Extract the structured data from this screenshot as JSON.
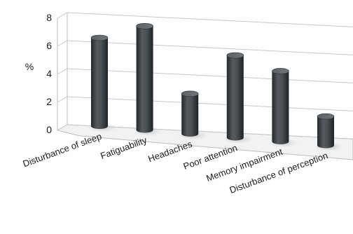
{
  "chart_data": {
    "type": "bar",
    "style": "3d-cylinder",
    "categories": [
      "Disturbance of sleep",
      "Fatiguability",
      "Headaches",
      "Poor attention",
      "Memory impairment",
      "Disturbance of perception"
    ],
    "values": [
      7.0,
      8.0,
      3.0,
      6.0,
      5.0,
      2.0
    ],
    "ylabel": "%",
    "xlabel": "",
    "ylim": [
      0,
      8
    ],
    "yticks": [
      0,
      2,
      4,
      6,
      8
    ],
    "grid": true,
    "legend": "none",
    "colors": {
      "bar": "#3f4548",
      "bar_dark": "#23282a",
      "bar_light": "#7a8084",
      "axis": "#bdbdbd",
      "grid": "#c8c8c8"
    }
  }
}
